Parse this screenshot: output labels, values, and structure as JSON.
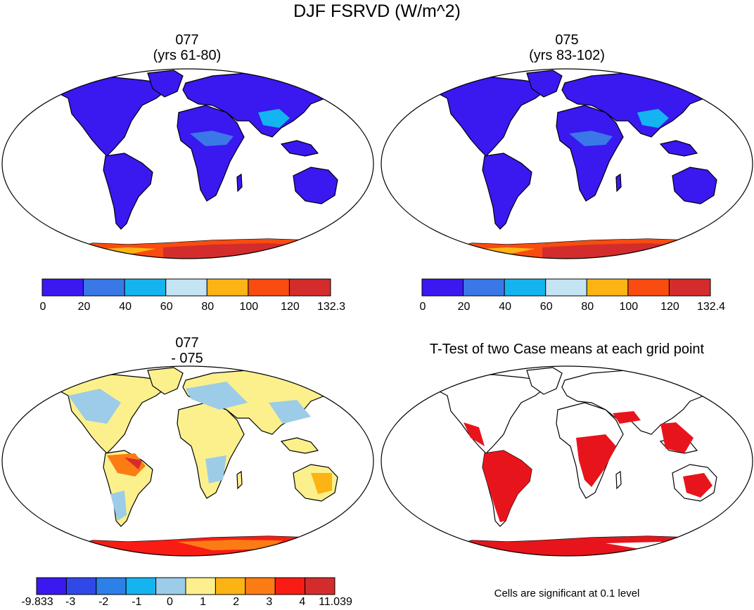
{
  "figure_title": "DJF FSRVD (W/m^2)",
  "panels": {
    "top_left": {
      "line1": "077",
      "line2": "(yrs 61-80)",
      "colorbar_labels": [
        "0",
        "20",
        "40",
        "60",
        "80",
        "100",
        "120",
        "132.3"
      ]
    },
    "top_right": {
      "line1": "075",
      "line2": "(yrs 83-102)",
      "colorbar_labels": [
        "0",
        "20",
        "40",
        "60",
        "80",
        "100",
        "120",
        "132.4"
      ]
    },
    "bottom_left": {
      "line1": "077",
      "line2": "- 075",
      "colorbar_labels": [
        "-9.833",
        "-3",
        "-2",
        "-1",
        "0",
        "1",
        "2",
        "3",
        "4",
        "11.039"
      ]
    },
    "bottom_right": {
      "line1": "T-Test of two Case means at each grid point",
      "note": "Cells are significant at 0.1 level"
    }
  },
  "colors": {
    "abs_scale": [
      "#3a18f0",
      "#3a78e8",
      "#14b4f0",
      "#c4e4f4",
      "#fcb414",
      "#f84c10",
      "#d42c2c"
    ],
    "diff_scale": [
      "#3a18f0",
      "#3048e8",
      "#2c80e8",
      "#14b4f0",
      "#9ccce8",
      "#fcf08c",
      "#fcb414",
      "#fc7c14",
      "#f81c14",
      "#d42c2c"
    ],
    "significance": "#e8141c"
  }
}
